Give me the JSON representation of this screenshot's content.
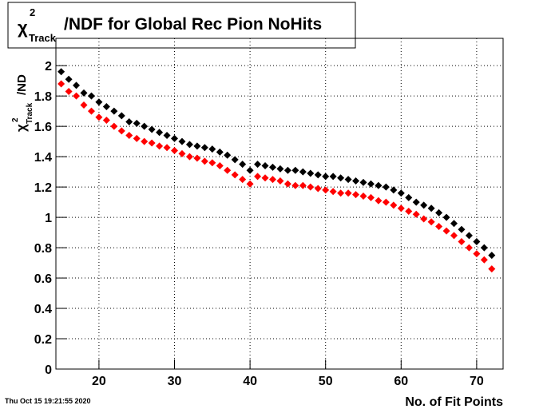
{
  "chart_data": {
    "type": "scatter",
    "title": {
      "symbol": "χ",
      "sup": "2",
      "sub": "Track",
      "text": "/NDF for Global Rec Pion NoHits"
    },
    "y_label": {
      "symbol": "χ",
      "sup": "2",
      "sub": "Track",
      "text": "/ND"
    },
    "x_label": "No. of Fit Points",
    "timestamp": "Thu Oct 15 19:21:55 2020",
    "x": [
      15,
      16,
      17,
      18,
      19,
      20,
      21,
      22,
      23,
      24,
      25,
      26,
      27,
      28,
      29,
      30,
      31,
      32,
      33,
      34,
      35,
      36,
      37,
      38,
      39,
      40,
      41,
      42,
      43,
      44,
      45,
      46,
      47,
      48,
      49,
      50,
      51,
      52,
      53,
      54,
      55,
      56,
      57,
      58,
      59,
      60,
      61,
      62,
      63,
      64,
      65,
      66,
      67,
      68,
      69,
      70,
      71,
      72
    ],
    "series": [
      {
        "color": "#000000",
        "values": [
          1.96,
          1.91,
          1.87,
          1.82,
          1.8,
          1.76,
          1.73,
          1.7,
          1.67,
          1.63,
          1.62,
          1.6,
          1.58,
          1.56,
          1.54,
          1.52,
          1.5,
          1.48,
          1.47,
          1.46,
          1.45,
          1.43,
          1.41,
          1.38,
          1.35,
          1.31,
          1.35,
          1.34,
          1.33,
          1.32,
          1.31,
          1.31,
          1.3,
          1.29,
          1.28,
          1.27,
          1.27,
          1.26,
          1.25,
          1.24,
          1.23,
          1.22,
          1.21,
          1.2,
          1.18,
          1.16,
          1.13,
          1.1,
          1.08,
          1.06,
          1.03,
          1.0,
          0.96,
          0.92,
          0.88,
          0.84,
          0.8,
          0.75
        ]
      },
      {
        "color": "#ff0000",
        "values": [
          1.88,
          1.83,
          1.8,
          1.74,
          1.7,
          1.66,
          1.64,
          1.6,
          1.57,
          1.54,
          1.52,
          1.5,
          1.49,
          1.47,
          1.46,
          1.44,
          1.42,
          1.4,
          1.39,
          1.37,
          1.36,
          1.34,
          1.31,
          1.28,
          1.25,
          1.22,
          1.27,
          1.26,
          1.25,
          1.24,
          1.22,
          1.21,
          1.21,
          1.2,
          1.19,
          1.18,
          1.17,
          1.16,
          1.16,
          1.15,
          1.14,
          1.13,
          1.11,
          1.1,
          1.08,
          1.06,
          1.04,
          1.02,
          0.99,
          0.97,
          0.94,
          0.91,
          0.88,
          0.84,
          0.8,
          0.76,
          0.72,
          0.66
        ]
      }
    ],
    "xlim": [
      14.3,
      73.5
    ],
    "xticks": [
      20,
      30,
      40,
      50,
      60,
      70
    ],
    "ylim": [
      0,
      2.18
    ],
    "yticks": [
      0,
      0.2,
      0.4,
      0.6,
      0.8,
      1,
      1.2,
      1.4,
      1.6,
      1.8,
      2
    ],
    "grid": true
  }
}
